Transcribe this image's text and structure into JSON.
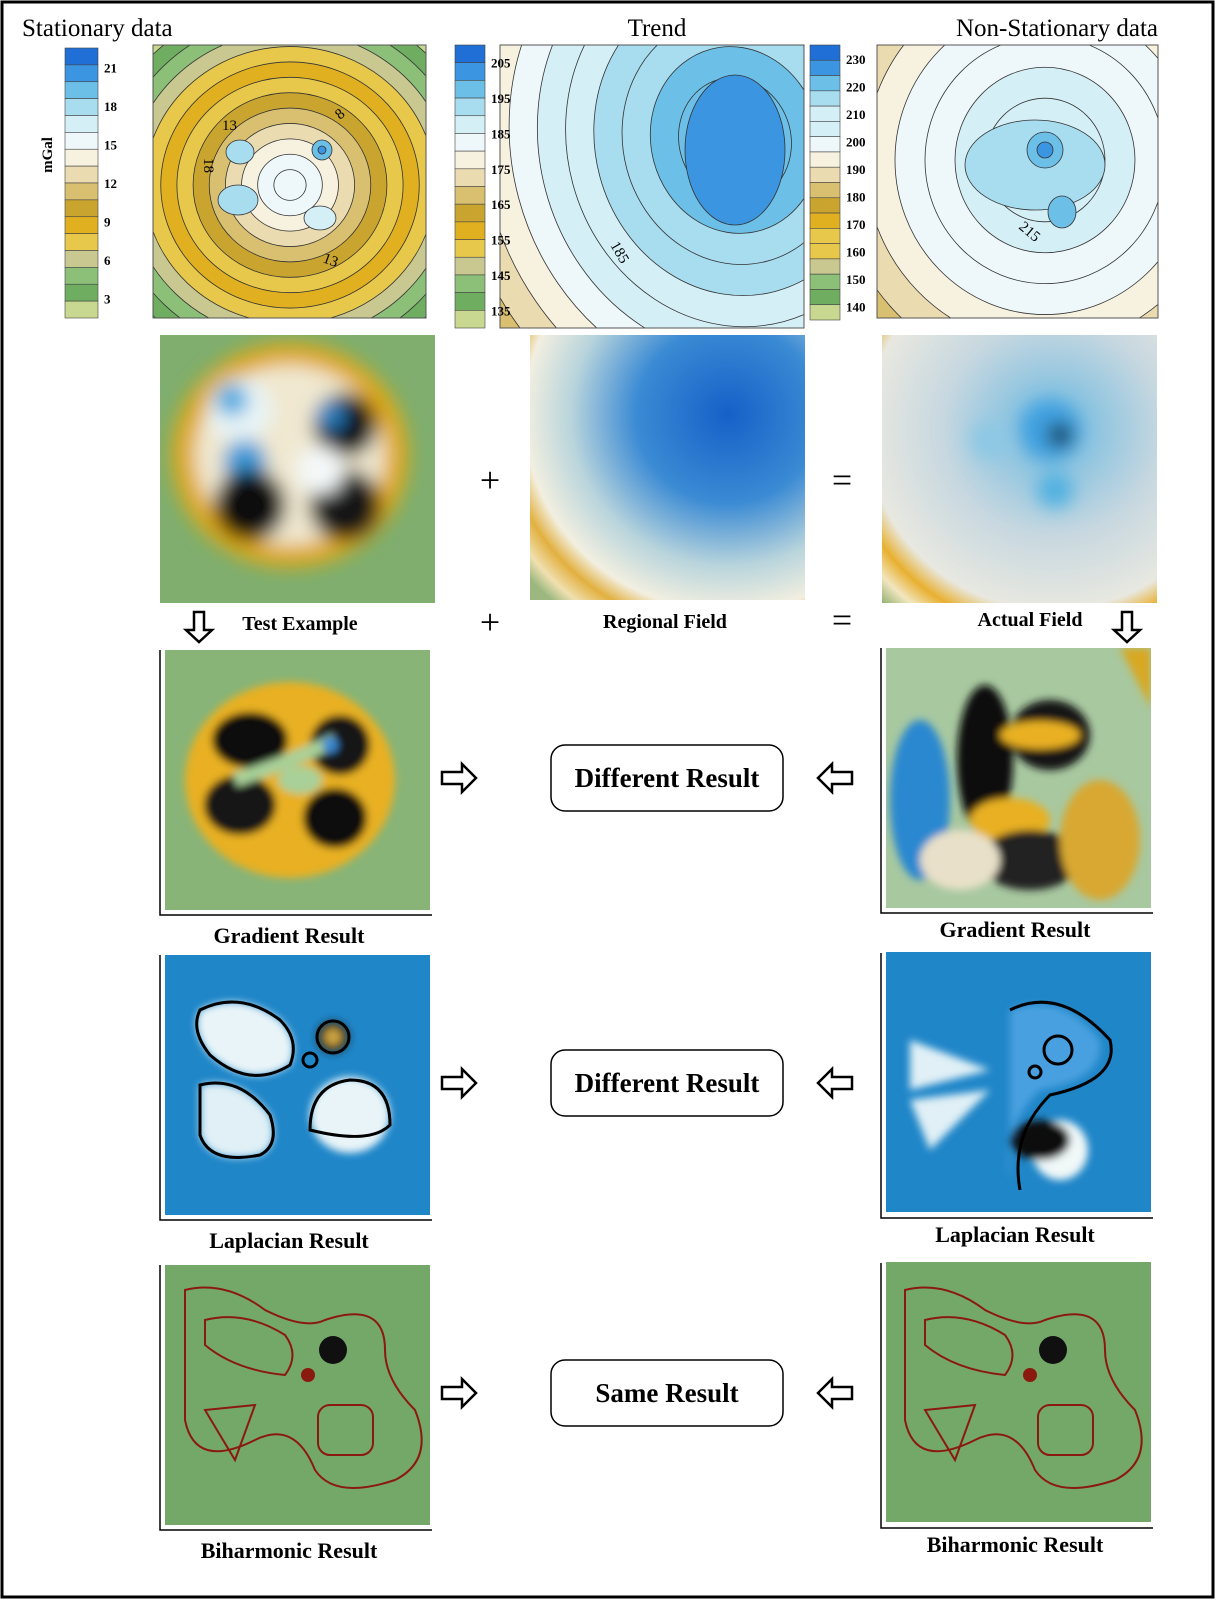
{
  "headers": [
    "Stationary data",
    "Trend",
    "Non-Stationary data"
  ],
  "colorbars": [
    {
      "unit": "mGal",
      "ticks": [
        21,
        18,
        15,
        12,
        9,
        6,
        3
      ]
    },
    {
      "ticks": [
        205,
        195,
        185,
        175,
        165,
        155,
        145,
        135
      ]
    },
    {
      "ticks": [
        230,
        220,
        210,
        200,
        190,
        180,
        170,
        160,
        150,
        140
      ]
    }
  ],
  "contour_labels": [
    [
      13,
      8,
      18,
      13
    ],
    [
      185
    ],
    [
      215
    ]
  ],
  "operators": [
    "+",
    "=",
    "+",
    "="
  ],
  "captions": [
    "Test Example",
    "Regional Field",
    "Actual Field"
  ],
  "results": [
    {
      "left": "Gradient Result",
      "middle": "Different Result",
      "right": "Gradient Result"
    },
    {
      "left": "Laplacian Result",
      "middle": "Different Result",
      "right": "Laplacian Result"
    },
    {
      "left": "Biharmonic Result",
      "middle": "Same Result",
      "right": "Biharmonic Result"
    }
  ]
}
